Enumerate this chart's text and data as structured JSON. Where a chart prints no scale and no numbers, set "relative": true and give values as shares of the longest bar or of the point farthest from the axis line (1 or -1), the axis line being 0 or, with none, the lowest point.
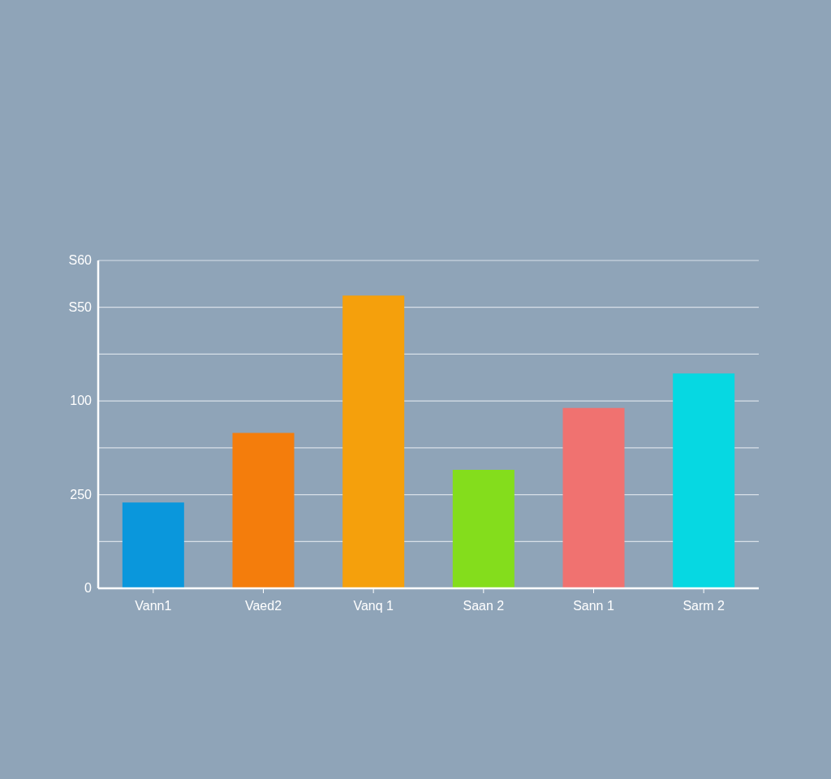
{
  "chart_data": {
    "type": "bar",
    "categories": [
      "Vann1",
      "Vaed2",
      "Vanq 1",
      "Saan 2",
      "Sann 1",
      "Sarm 2"
    ],
    "values": [
      0.293,
      0.531,
      1,
      0.405,
      0.616,
      0.734
    ],
    "colors": [
      "#0a97dc",
      "#f47d0c",
      "#f5a00c",
      "#84dd1c",
      "#f07270",
      "#06d8e2"
    ],
    "relative": true,
    "annotations": [
      "0",
      "250",
      "100",
      "S50",
      "S60"
    ],
    "grid": "y"
  }
}
